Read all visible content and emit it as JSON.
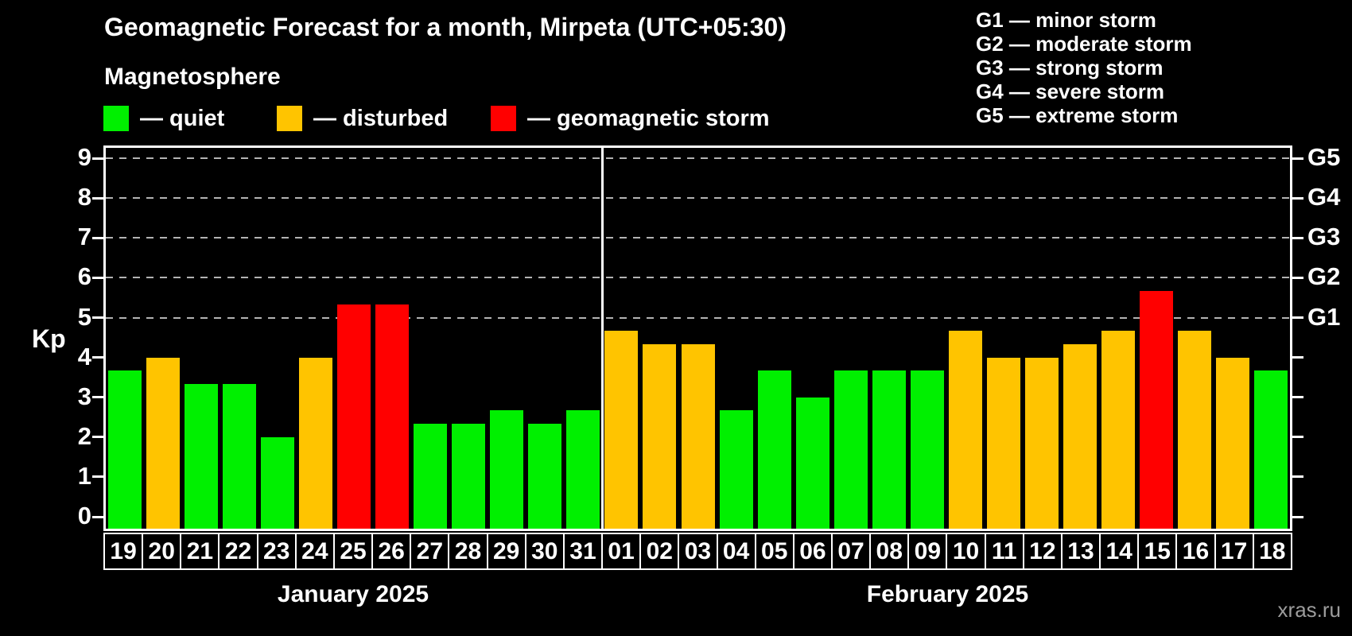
{
  "header": {
    "title": "Geomagnetic Forecast for a month, Mirpeta (UTC+05:30)",
    "subtitle": "Magnetosphere"
  },
  "legend": {
    "items": [
      {
        "key": "quiet",
        "color": "#00f000",
        "label": "— quiet"
      },
      {
        "key": "disturbed",
        "color": "#ffc400",
        "label": "— disturbed"
      },
      {
        "key": "storm",
        "color": "#ff0000",
        "label": "— geomagnetic storm"
      }
    ]
  },
  "g_legend": {
    "items": [
      "G1 — minor storm",
      "G2 — moderate storm",
      "G3 — strong storm",
      "G4 — severe storm",
      "G5 — extreme storm"
    ]
  },
  "axis": {
    "kp_label": "Kp"
  },
  "watermark": "xras.ru",
  "chart_data": {
    "type": "bar",
    "title": "Geomagnetic Forecast for a month, Mirpeta (UTC+05:30)",
    "subtitle": "Magnetosphere",
    "ylabel": "Kp",
    "ylim": [
      0,
      9
    ],
    "yticks": [
      0,
      1,
      2,
      3,
      4,
      5,
      6,
      7,
      8,
      9
    ],
    "gridlines_kp": [
      5,
      6,
      7,
      8,
      9
    ],
    "grid_style": "dashed horizontal gray lines at Kp 5-9 only",
    "right_axis": [
      [
        "G1",
        5
      ],
      [
        "G2",
        6
      ],
      [
        "G3",
        7
      ],
      [
        "G4",
        8
      ],
      [
        "G5",
        9
      ]
    ],
    "legend_position": "top-left",
    "bar_color_meaning": {
      "quiet": "green",
      "disturbed": "orange",
      "storm": "red"
    },
    "series": [
      {
        "name": "January 2025",
        "categories": [
          "19",
          "20",
          "21",
          "22",
          "23",
          "24",
          "25",
          "26",
          "27",
          "28",
          "29",
          "30",
          "31"
        ],
        "values": [
          3.67,
          4.0,
          3.33,
          3.33,
          2.0,
          4.0,
          5.33,
          5.33,
          2.33,
          2.33,
          2.67,
          2.33,
          2.67
        ],
        "status": [
          "quiet",
          "disturbed",
          "quiet",
          "quiet",
          "quiet",
          "disturbed",
          "storm",
          "storm",
          "quiet",
          "quiet",
          "quiet",
          "quiet",
          "quiet"
        ]
      },
      {
        "name": "February 2025",
        "categories": [
          "01",
          "02",
          "03",
          "04",
          "05",
          "06",
          "07",
          "08",
          "09",
          "10",
          "11",
          "12",
          "13",
          "14",
          "15",
          "16",
          "17",
          "18"
        ],
        "values": [
          4.67,
          4.33,
          4.33,
          2.67,
          3.67,
          3.0,
          3.67,
          3.67,
          3.67,
          4.67,
          4.0,
          4.0,
          4.33,
          4.67,
          5.67,
          4.67,
          4.0,
          3.67
        ],
        "status": [
          "disturbed",
          "disturbed",
          "disturbed",
          "quiet",
          "quiet",
          "quiet",
          "quiet",
          "quiet",
          "quiet",
          "disturbed",
          "disturbed",
          "disturbed",
          "disturbed",
          "disturbed",
          "storm",
          "disturbed",
          "disturbed",
          "quiet"
        ]
      }
    ]
  }
}
